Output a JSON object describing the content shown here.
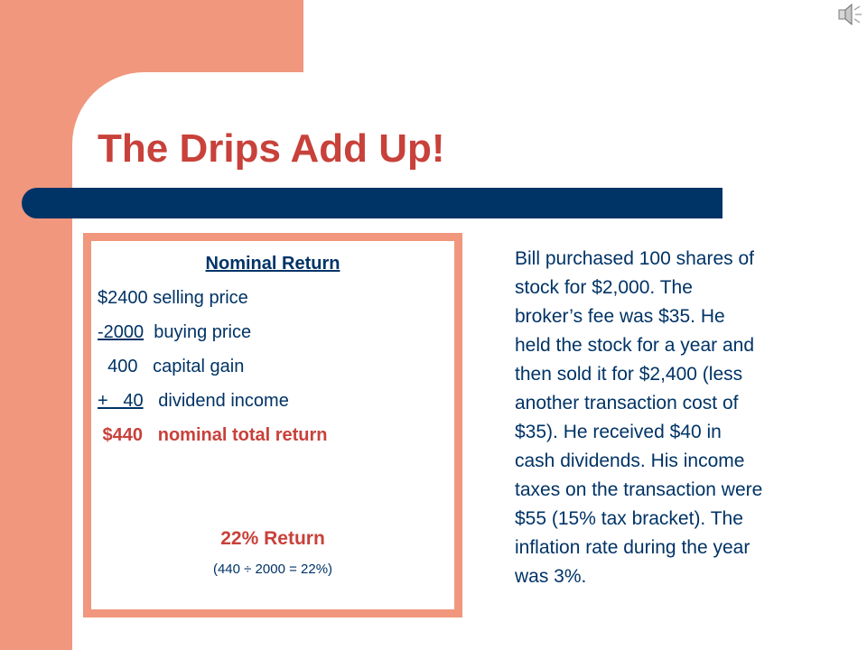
{
  "slide": {
    "title": "The Drips Add Up!"
  },
  "nominal_box": {
    "heading": "Nominal Return",
    "lines": [
      {
        "amount": "$2400",
        "gap": " ",
        "label": "selling price"
      },
      {
        "amount": "-2000",
        "gap": "  ",
        "label": "buying price"
      },
      {
        "amount": "  400",
        "gap": "   ",
        "label": "capital gain"
      },
      {
        "amount": "+   40",
        "gap": "   ",
        "label": "dividend income"
      },
      {
        "amount": " $440",
        "gap": "   ",
        "label": "nominal total return"
      }
    ],
    "return_label": "22% Return",
    "calculation": "(440 ÷ 2000 = 22%)"
  },
  "story": {
    "lines": [
      "Bill purchased 100 shares of",
      "stock for $2,000.  The",
      "broker’s fee was $35.  He",
      "held the stock for a year and",
      "then sold it for $2,400 (less",
      "another transaction cost of",
      "$35).  He received $40 in",
      "cash dividends.  His income",
      "taxes on the transaction were",
      "$55 (15% tax bracket).  The",
      "inflation rate during the year",
      "was 3%."
    ]
  },
  "icons": {
    "audio": "speaker-icon"
  },
  "colors": {
    "title_red": "#C8413A",
    "navy": "#003366",
    "salmon": "#F0977E"
  }
}
